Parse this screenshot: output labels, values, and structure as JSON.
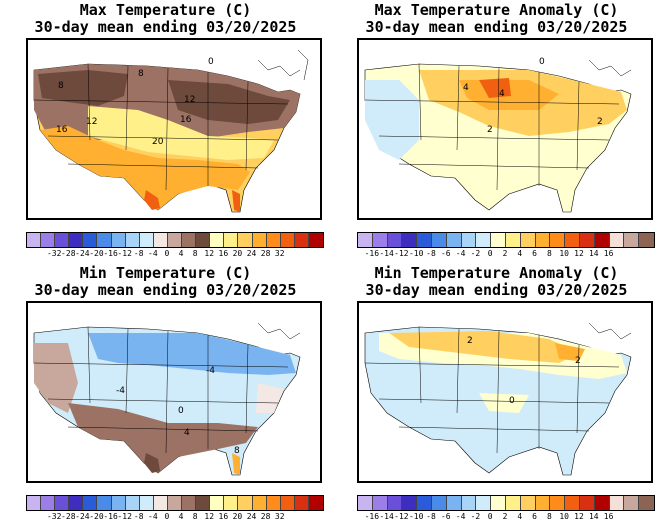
{
  "panels": [
    {
      "id": "max_temp",
      "title_line1": "Max Temperature (C)",
      "title_line2": "30-day mean ending 03/20/2025",
      "legend_colors": [
        "#c8b4f0",
        "#9b7ee8",
        "#6a4fd8",
        "#3d2ec0",
        "#2a5bd8",
        "#4a8ae8",
        "#7ab4f0",
        "#a8d4f8",
        "#d0ecfa",
        "#f4e8e4",
        "#c8a89c",
        "#9c7264",
        "#6e4a3c",
        "#ffffc0",
        "#fff08a",
        "#ffd060",
        "#ffb030",
        "#ff8c1a",
        "#f06010",
        "#d83010",
        "#b00000"
      ],
      "legend_ticks": [
        "-32",
        "-28",
        "-24",
        "-20",
        "-16",
        "-12",
        "-8",
        "-4",
        "0",
        "4",
        "8",
        "12",
        "16",
        "20",
        "24",
        "28",
        "32"
      ],
      "contour_labels": [
        "0",
        "8",
        "8",
        "12",
        "12",
        "16",
        "16",
        "20"
      ]
    },
    {
      "id": "max_anom",
      "title_line1": "Max Temperature Anomaly (C)",
      "title_line2": "30-day mean ending 03/20/2025",
      "legend_colors": [
        "#c8b4f0",
        "#9b7ee8",
        "#6a4fd8",
        "#3d2ec0",
        "#2a5bd8",
        "#4a8ae8",
        "#7ab4f0",
        "#a8d4f8",
        "#d0ecfa",
        "#ffffd0",
        "#fff08a",
        "#ffd060",
        "#ffb030",
        "#ff8c1a",
        "#f06010",
        "#d83010",
        "#b00000",
        "#f4e0d8",
        "#c8a89c",
        "#8c6454"
      ],
      "legend_ticks": [
        "-16",
        "-14",
        "-12",
        "-10",
        "-8",
        "-6",
        "-4",
        "-2",
        "0",
        "2",
        "4",
        "6",
        "8",
        "10",
        "12",
        "14",
        "16"
      ],
      "contour_labels": [
        "0",
        "2",
        "4",
        "4",
        "2"
      ]
    },
    {
      "id": "min_temp",
      "title_line1": "Min Temperature (C)",
      "title_line2": "30-day mean ending 03/20/2025",
      "legend_colors": [
        "#c8b4f0",
        "#9b7ee8",
        "#6a4fd8",
        "#3d2ec0",
        "#2a5bd8",
        "#4a8ae8",
        "#7ab4f0",
        "#a8d4f8",
        "#d0ecfa",
        "#f4e8e4",
        "#c8a89c",
        "#9c7264",
        "#6e4a3c",
        "#ffffc0",
        "#fff08a",
        "#ffd060",
        "#ffb030",
        "#ff8c1a",
        "#f06010",
        "#d83010",
        "#b00000"
      ],
      "legend_ticks": [
        "-32",
        "-28",
        "-24",
        "-20",
        "-16",
        "-12",
        "-8",
        "-4",
        "0",
        "4",
        "8",
        "12",
        "16",
        "20",
        "24",
        "28",
        "32"
      ],
      "contour_labels": [
        "-4",
        "-4",
        "0",
        "4",
        "8"
      ]
    },
    {
      "id": "min_anom",
      "title_line1": "Min Temperature Anomaly (C)",
      "title_line2": "30-day mean ending 03/20/2025",
      "legend_colors": [
        "#c8b4f0",
        "#9b7ee8",
        "#6a4fd8",
        "#3d2ec0",
        "#2a5bd8",
        "#4a8ae8",
        "#7ab4f0",
        "#a8d4f8",
        "#d0ecfa",
        "#ffffd0",
        "#fff08a",
        "#ffd060",
        "#ffb030",
        "#ff8c1a",
        "#f06010",
        "#d83010",
        "#b00000",
        "#f4e0d8",
        "#c8a89c",
        "#8c6454"
      ],
      "legend_ticks": [
        "-16",
        "-14",
        "-12",
        "-10",
        "-8",
        "-6",
        "-4",
        "-2",
        "0",
        "2",
        "4",
        "6",
        "8",
        "10",
        "12",
        "14",
        "16"
      ],
      "contour_labels": [
        "2",
        "2",
        "0"
      ]
    }
  ]
}
